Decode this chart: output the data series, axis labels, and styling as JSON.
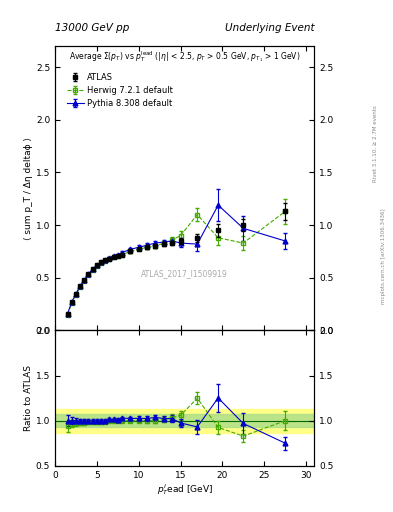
{
  "title_left": "13000 GeV pp",
  "title_right": "Underlying Event",
  "right_label1": "Rivet 3.1.10, ≥ 2.7M events",
  "right_label2": "mcplots.cern.ch [arXiv:1306.3436]",
  "watermark": "ATLAS_2017_I1509919",
  "ylabel_main": "⟨ sum p_T / Δη deltaϕ ⟩",
  "ylabel_ratio": "Ratio to ATLAS",
  "xlabel": "p_T^{l}ead [GeV]",
  "atlas_x": [
    1.5,
    2.0,
    2.5,
    3.0,
    3.5,
    4.0,
    4.5,
    5.0,
    5.5,
    6.0,
    6.5,
    7.0,
    7.5,
    8.0,
    9.0,
    10.0,
    11.0,
    12.0,
    13.0,
    14.0,
    15.0,
    17.0,
    19.5,
    22.5,
    27.5
  ],
  "atlas_y": [
    0.16,
    0.27,
    0.35,
    0.42,
    0.48,
    0.54,
    0.58,
    0.62,
    0.65,
    0.67,
    0.68,
    0.7,
    0.71,
    0.72,
    0.75,
    0.77,
    0.79,
    0.8,
    0.82,
    0.83,
    0.85,
    0.88,
    0.95,
    1.0,
    1.13
  ],
  "atlas_yerr": [
    0.01,
    0.01,
    0.01,
    0.01,
    0.01,
    0.01,
    0.01,
    0.01,
    0.01,
    0.01,
    0.01,
    0.01,
    0.01,
    0.01,
    0.01,
    0.01,
    0.02,
    0.02,
    0.02,
    0.02,
    0.03,
    0.04,
    0.06,
    0.06,
    0.08
  ],
  "herwig_x": [
    1.5,
    2.0,
    2.5,
    3.0,
    3.5,
    4.0,
    4.5,
    5.0,
    5.5,
    6.0,
    6.5,
    7.0,
    7.5,
    8.0,
    9.0,
    10.0,
    11.0,
    12.0,
    13.0,
    14.0,
    15.0,
    17.0,
    19.5,
    22.5,
    27.5
  ],
  "herwig_y": [
    0.15,
    0.26,
    0.34,
    0.41,
    0.47,
    0.53,
    0.57,
    0.61,
    0.64,
    0.66,
    0.68,
    0.7,
    0.71,
    0.72,
    0.75,
    0.77,
    0.79,
    0.8,
    0.83,
    0.86,
    0.9,
    1.1,
    0.88,
    0.83,
    1.13
  ],
  "herwig_yerr": [
    0.01,
    0.01,
    0.01,
    0.01,
    0.01,
    0.01,
    0.01,
    0.01,
    0.01,
    0.01,
    0.01,
    0.01,
    0.01,
    0.01,
    0.01,
    0.01,
    0.02,
    0.02,
    0.02,
    0.03,
    0.04,
    0.06,
    0.07,
    0.07,
    0.12
  ],
  "pythia_x": [
    1.5,
    2.0,
    2.5,
    3.0,
    3.5,
    4.0,
    4.5,
    5.0,
    5.5,
    6.0,
    6.5,
    7.0,
    7.5,
    8.0,
    9.0,
    10.0,
    11.0,
    12.0,
    13.0,
    14.0,
    15.0,
    17.0,
    19.5,
    22.5,
    27.5
  ],
  "pythia_y": [
    0.16,
    0.27,
    0.35,
    0.42,
    0.48,
    0.54,
    0.58,
    0.62,
    0.65,
    0.67,
    0.69,
    0.71,
    0.72,
    0.74,
    0.77,
    0.79,
    0.81,
    0.83,
    0.84,
    0.85,
    0.83,
    0.82,
    1.19,
    0.97,
    0.85
  ],
  "pythia_yerr": [
    0.01,
    0.01,
    0.01,
    0.01,
    0.01,
    0.01,
    0.01,
    0.01,
    0.01,
    0.01,
    0.01,
    0.01,
    0.01,
    0.01,
    0.01,
    0.02,
    0.02,
    0.02,
    0.02,
    0.03,
    0.04,
    0.07,
    0.15,
    0.12,
    0.08
  ],
  "atlas_color": "black",
  "herwig_color": "#44aa00",
  "pythia_color": "#0000cc",
  "ylim_main": [
    0.0,
    2.7
  ],
  "ylim_ratio": [
    0.5,
    2.0
  ],
  "xlim": [
    1.0,
    31.0
  ],
  "band_yellow": "#ffff88",
  "band_green": "#aadd88",
  "band_lower": 0.93,
  "band_upper": 1.07,
  "band_outer_lower": 0.87,
  "band_outer_upper": 1.13
}
